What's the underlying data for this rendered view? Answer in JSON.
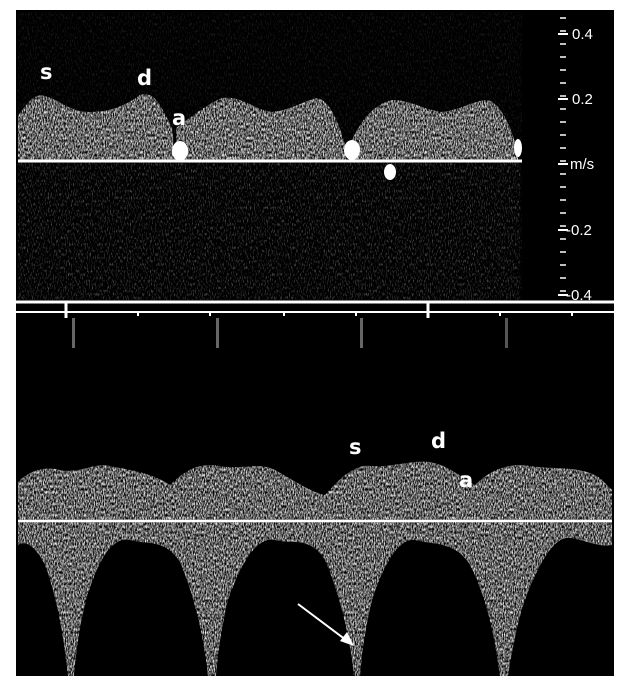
{
  "top_panel": {
    "labels": {
      "s": "s",
      "d": "d",
      "a": "a"
    },
    "scale": {
      "ticks": [
        "0.4",
        "0.2",
        "m/s",
        "-0.2",
        "-0.4"
      ]
    }
  },
  "bottom_panel": {
    "labels": {
      "s": "s",
      "d": "d",
      "a": "a"
    }
  },
  "colors": {
    "background": "#000000",
    "frame": "#ffffff",
    "signal": "#e6e6e6",
    "baseline": "#ffffff"
  }
}
